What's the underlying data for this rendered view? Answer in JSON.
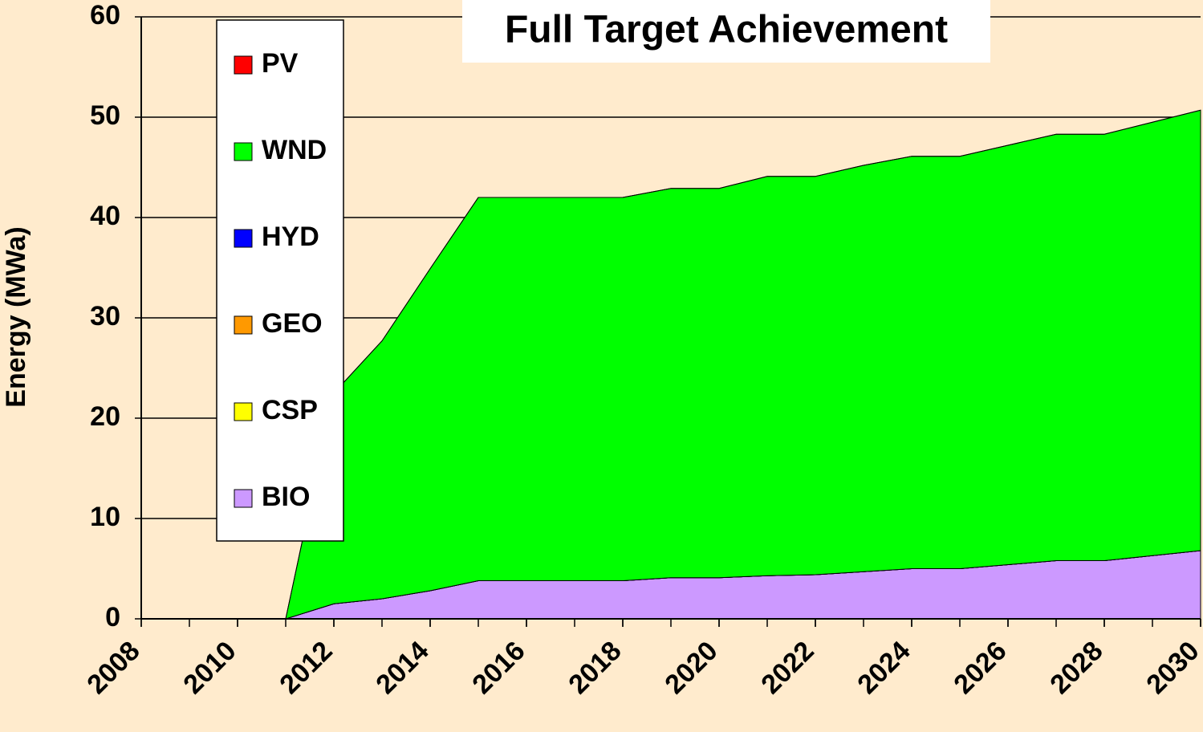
{
  "chart_data": {
    "type": "stacked_area",
    "title": "Full Target Achievement",
    "y_label": "Energy (MWa)",
    "x": [
      2008,
      2009,
      2010,
      2011,
      2012,
      2013,
      2014,
      2015,
      2016,
      2017,
      2018,
      2019,
      2020,
      2021,
      2022,
      2023,
      2024,
      2025,
      2026,
      2027,
      2028,
      2029,
      2030
    ],
    "xlim": [
      2008,
      2030
    ],
    "xticks": [
      2008,
      2010,
      2012,
      2014,
      2016,
      2018,
      2020,
      2022,
      2024,
      2026,
      2028,
      2030
    ],
    "ylim": [
      0,
      60
    ],
    "yticks": [
      0,
      10,
      20,
      30,
      40,
      50,
      60
    ],
    "grid": true,
    "series": [
      {
        "name": "PV",
        "color": "#ff0000",
        "values": [
          0,
          0,
          0,
          0,
          0,
          0,
          0,
          0,
          0,
          0,
          0,
          0,
          0,
          0,
          0,
          0,
          0,
          0,
          0,
          0,
          0,
          0,
          0
        ]
      },
      {
        "name": "WND",
        "color": "#00ff00",
        "values": [
          0,
          0,
          0,
          0,
          21.0,
          25.7,
          32.1,
          38.2,
          38.2,
          38.2,
          38.2,
          38.8,
          38.8,
          39.8,
          39.7,
          40.5,
          41.1,
          41.1,
          41.8,
          42.5,
          42.5,
          43.2,
          43.9
        ]
      },
      {
        "name": "HYD",
        "color": "#0000ff",
        "values": [
          0,
          0,
          0,
          0,
          0,
          0,
          0,
          0,
          0,
          0,
          0,
          0,
          0,
          0,
          0,
          0,
          0,
          0,
          0,
          0,
          0,
          0,
          0
        ]
      },
      {
        "name": "GEO",
        "color": "#ff9900",
        "values": [
          0,
          0,
          0,
          0,
          0,
          0,
          0,
          0,
          0,
          0,
          0,
          0,
          0,
          0,
          0,
          0,
          0,
          0,
          0,
          0,
          0,
          0,
          0
        ]
      },
      {
        "name": "CSP",
        "color": "#ffff00",
        "values": [
          0,
          0,
          0,
          0,
          0,
          0,
          0,
          0,
          0,
          0,
          0,
          0,
          0,
          0,
          0,
          0,
          0,
          0,
          0,
          0,
          0,
          0,
          0
        ]
      },
      {
        "name": "BIO",
        "color": "#cc99ff",
        "values": [
          0,
          0,
          0,
          0,
          1.5,
          2.0,
          2.8,
          3.8,
          3.8,
          3.8,
          3.8,
          4.1,
          4.1,
          4.3,
          4.4,
          4.7,
          5.0,
          5.0,
          5.4,
          5.8,
          5.8,
          6.3,
          6.8
        ]
      }
    ]
  }
}
